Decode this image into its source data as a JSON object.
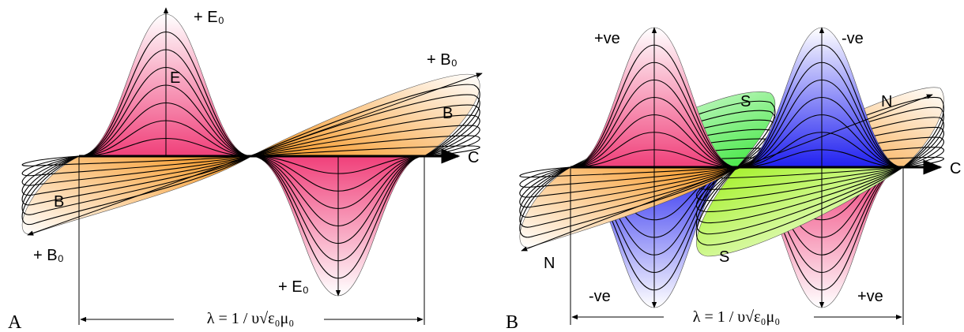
{
  "panel_a": {
    "label": "A",
    "e_top": "+ E₀",
    "e_field": "E",
    "b_top": "+ B₀",
    "b_field_right": "B",
    "propagation": "C",
    "b_field_left": "B",
    "b_bottom": "+ B₀",
    "e_bottom": "+ E₀",
    "wavelength": "λ = 1 / υ√ε₀μ₀"
  },
  "panel_b": {
    "label": "B",
    "pole_top_left": "+ve",
    "pole_top_right": "-ve",
    "s_top": "S",
    "n_right": "N",
    "propagation": "C",
    "n_left": "N",
    "s_bottom": "S",
    "pole_bottom_left": "-ve",
    "pole_bottom_right": "+ve",
    "wavelength": "λ = 1 / υ√ε₀μ₀"
  }
}
